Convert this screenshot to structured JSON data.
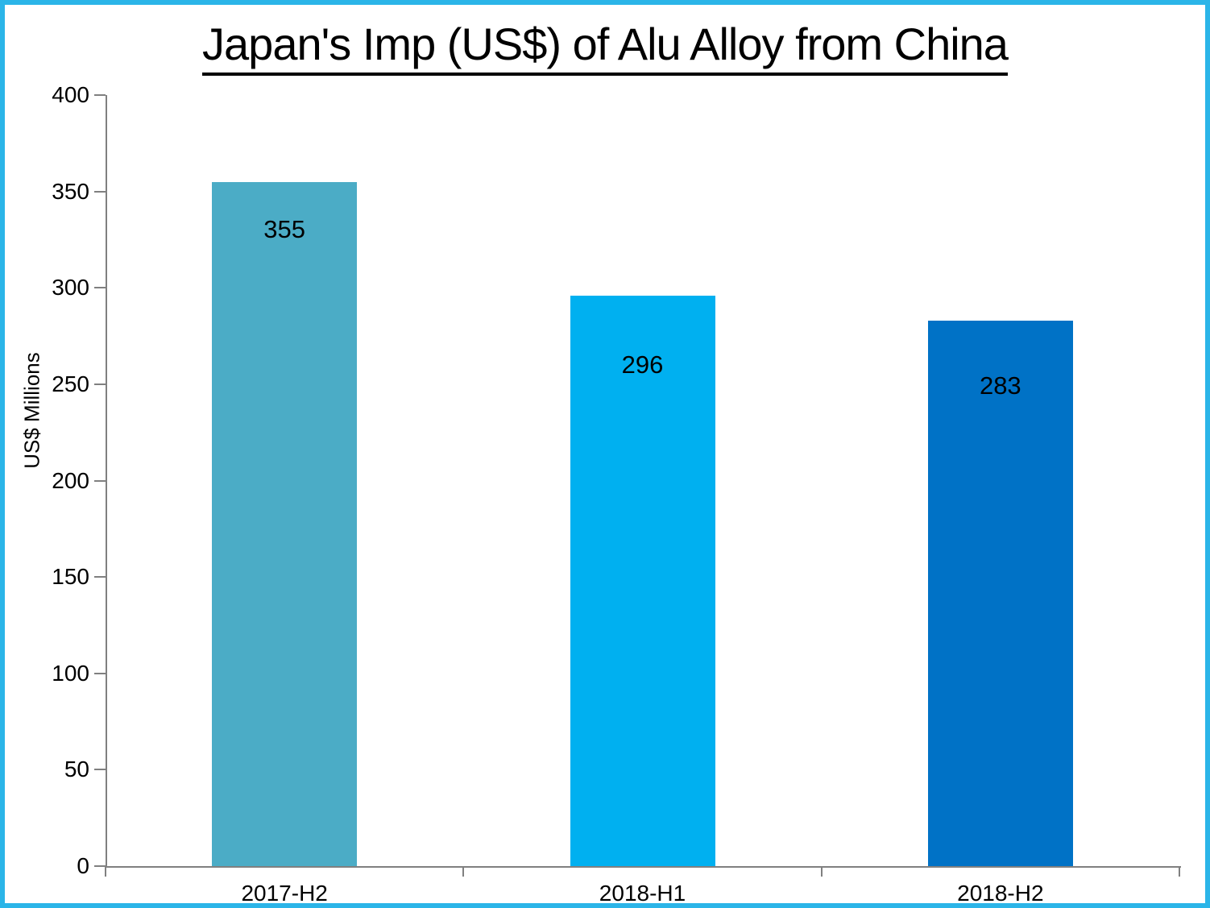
{
  "title": "Japan's Imp (US$) of Alu Alloy from China",
  "chart_data": {
    "type": "bar",
    "title": "Japan's Imp (US$) of Alu Alloy from China",
    "categories": [
      "2017-H2",
      "2018-H1",
      "2018-H2"
    ],
    "values": [
      355,
      296,
      283
    ],
    "data_labels": [
      "355",
      "296",
      "283"
    ],
    "xlabel": "",
    "ylabel": "US$ Millions",
    "ylim": [
      0,
      400
    ],
    "yticks": [
      0,
      50,
      100,
      150,
      200,
      250,
      300,
      350,
      400
    ],
    "grid": false,
    "legend": false,
    "bar_colors": [
      "#4BACC6",
      "#00B0F0",
      "#0072C6"
    ],
    "axis_color": "#808080",
    "frame_border_color": "#2BB5E8",
    "background_color": "#FFFFFF",
    "text_color": "#000000"
  }
}
